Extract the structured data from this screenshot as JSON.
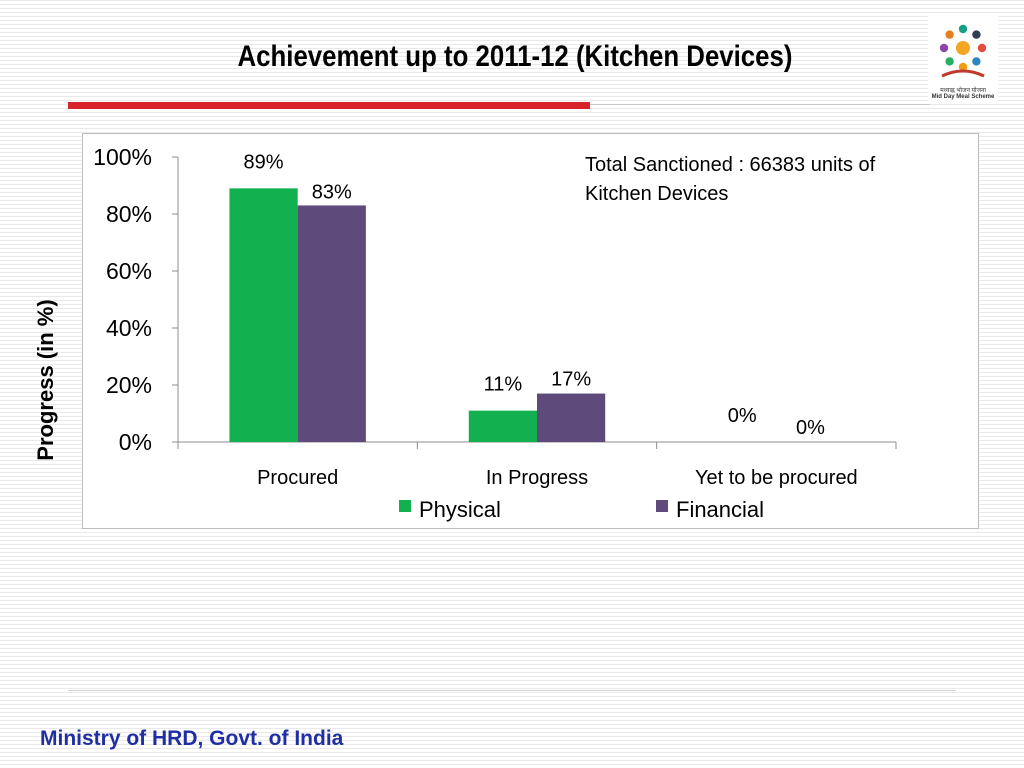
{
  "slide": {
    "title": "Achievement up to 2011-12 (Kitchen Devices)",
    "footer": "Ministry of HRD, Govt. of India",
    "logo_text": [
      "मध्याह्न भोजन योजना",
      "Mid Day Meal Scheme"
    ],
    "colors": {
      "accent_rule": "#d9232b",
      "footer_text": "#1f2fa3"
    }
  },
  "chart_data": {
    "type": "bar",
    "categories": [
      "Procured",
      "In Progress",
      "Yet to be procured"
    ],
    "series": [
      {
        "name": "Physical",
        "values": [
          89,
          11,
          0
        ],
        "labels": [
          "89%",
          "11%",
          "0%"
        ],
        "color": "#12b04e"
      },
      {
        "name": "Financial",
        "values": [
          83,
          17,
          0
        ],
        "labels": [
          "83%",
          "17%",
          "0%"
        ],
        "color": "#5e4b7c"
      }
    ],
    "ylabel": "Progress (in %)",
    "ylim": [
      0,
      100
    ],
    "yticks": [
      0,
      20,
      40,
      60,
      80,
      100
    ],
    "ytick_labels": [
      "0%",
      "20%",
      "40%",
      "60%",
      "80%",
      "100%"
    ],
    "grid": false,
    "legend_position": "bottom",
    "annotation": "Total Sanctioned : 66383 units of Kitchen Devices"
  }
}
